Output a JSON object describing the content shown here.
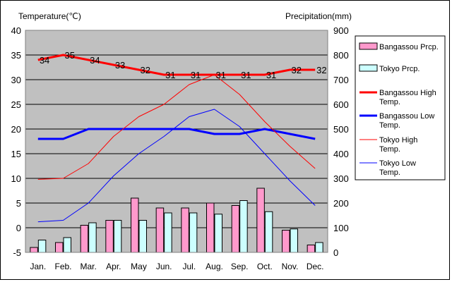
{
  "chart_data": {
    "type": "bar",
    "categories": [
      "Jan.",
      "Feb.",
      "Mar.",
      "Apr.",
      "May",
      "Jun.",
      "Jul.",
      "Aug.",
      "Sep.",
      "Oct.",
      "Nov.",
      "Dec."
    ],
    "y_left_label": "Temperature(℃)",
    "y_right_label": "Precipitation(mm)",
    "y_left_range": [
      -5,
      40
    ],
    "y_left_ticks": [
      -5,
      0,
      5,
      10,
      15,
      20,
      25,
      30,
      35,
      40
    ],
    "y_right_range": [
      0,
      900
    ],
    "y_right_ticks": [
      0,
      100,
      200,
      300,
      400,
      500,
      600,
      700,
      800,
      900
    ],
    "grid": "horizontal",
    "legend_position": "right",
    "bar_series": [
      {
        "name": "Bangassou Prcp.",
        "color": "#ff99cc",
        "values": [
          20,
          40,
          110,
          130,
          220,
          180,
          180,
          200,
          190,
          260,
          90,
          30
        ]
      },
      {
        "name": "Tokyo Prcp.",
        "color": "#ccffff",
        "values": [
          50,
          60,
          120,
          130,
          130,
          160,
          160,
          155,
          210,
          165,
          95,
          40
        ]
      }
    ],
    "line_series": [
      {
        "name": "Bangassou High Temp.",
        "color": "#ff0000",
        "width": 3,
        "values": [
          34,
          35,
          34,
          33,
          32,
          31,
          31,
          31,
          31,
          31,
          32,
          32
        ]
      },
      {
        "name": "Bangassou Low Temp.",
        "color": "#0000ff",
        "width": 3,
        "values": [
          18,
          18,
          20,
          20,
          20,
          20,
          20,
          19,
          19,
          20,
          19,
          18
        ]
      },
      {
        "name": "Tokyo High Temp.",
        "color": "#ff0000",
        "width": 1,
        "values": [
          9.8,
          10,
          13,
          18.5,
          22.5,
          25,
          29,
          31,
          27,
          21.5,
          16.5,
          12
        ]
      },
      {
        "name": "Tokyo Low Temp.",
        "color": "#0000ff",
        "width": 1,
        "values": [
          1.2,
          1.5,
          5,
          10.5,
          15,
          18.5,
          22.5,
          24,
          20.5,
          15,
          9.5,
          4.5
        ]
      }
    ],
    "data_labels": [
      "34",
      "35",
      "34",
      "33",
      "32",
      "31",
      "31",
      "31",
      "31",
      "31",
      "32",
      "32"
    ]
  }
}
